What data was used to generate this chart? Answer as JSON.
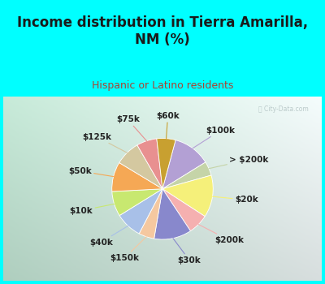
{
  "title": "Income distribution in Tierra Amarilla,\nNM (%)",
  "subtitle": "Hispanic or Latino residents",
  "watermark": "ⓘ City-Data.com",
  "background_cyan": "#00FFFF",
  "background_chart_grad_left": "#c8e8d8",
  "background_chart_grad_right": "#f0f8f8",
  "labels": [
    "$100k",
    "> $200k",
    "$20k",
    "$200k",
    "$30k",
    "$150k",
    "$40k",
    "$10k",
    "$50k",
    "$125k",
    "$75k",
    "$60k"
  ],
  "values": [
    12.0,
    4.5,
    13.5,
    6.5,
    12.0,
    5.0,
    8.5,
    8.0,
    9.5,
    8.0,
    6.5,
    6.0
  ],
  "colors": [
    "#b3a0d4",
    "#c5d4a8",
    "#f5f07a",
    "#f5b0b0",
    "#8888cc",
    "#f5c8a0",
    "#a8c0e8",
    "#c8e870",
    "#f5a855",
    "#d4c8a0",
    "#e89090",
    "#c8a030"
  ],
  "title_fontsize": 12,
  "subtitle_fontsize": 9,
  "title_color": "#1a1a1a",
  "subtitle_color": "#aa4433",
  "label_fontsize": 7.5,
  "label_color": "#222222"
}
